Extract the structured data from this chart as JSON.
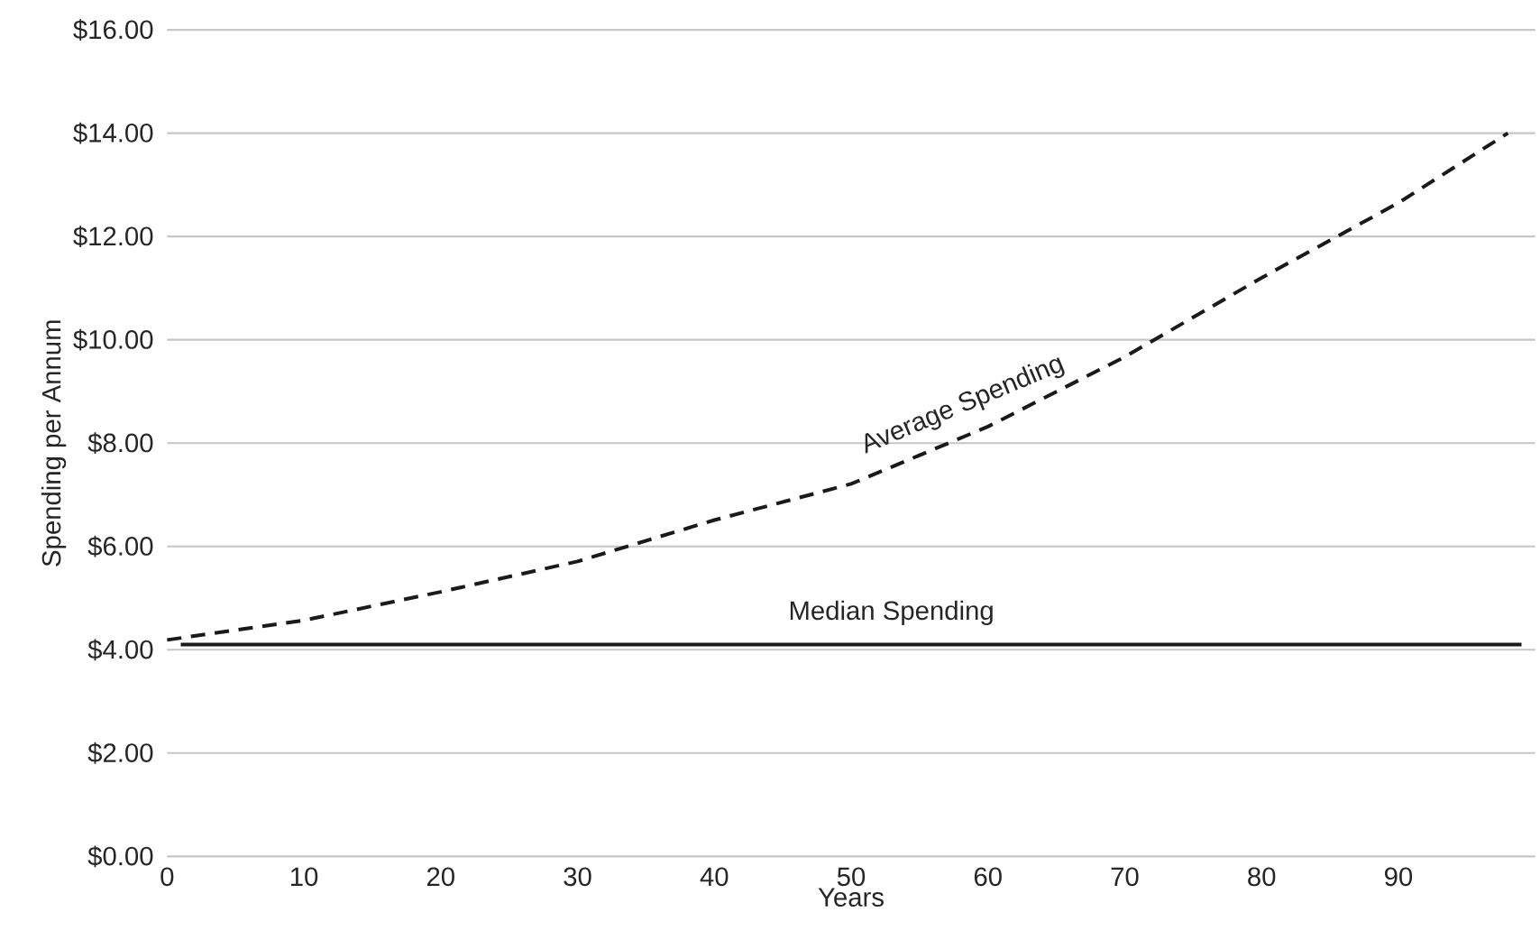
{
  "chart_data": {
    "type": "line",
    "xlabel": "Years",
    "ylabel": "Spending per Annum",
    "xlim": [
      0,
      100
    ],
    "ylim": [
      0,
      16
    ],
    "xticks": [
      0,
      10,
      20,
      30,
      40,
      50,
      60,
      70,
      80,
      90
    ],
    "yticks": [
      {
        "value": 0,
        "label": "$0.00"
      },
      {
        "value": 2,
        "label": "$2.00"
      },
      {
        "value": 4,
        "label": "$4.00"
      },
      {
        "value": 6,
        "label": "$6.00"
      },
      {
        "value": 8,
        "label": "$8.00"
      },
      {
        "value": 10,
        "label": "$10.00"
      },
      {
        "value": 12,
        "label": "$12.00"
      },
      {
        "value": 14,
        "label": "$14.00"
      },
      {
        "value": 16,
        "label": "$16.00"
      }
    ],
    "grid": "y",
    "legend": false,
    "series": [
      {
        "name": "Average Spending",
        "color": "#1a1a1a",
        "line_style": "dashed",
        "x": [
          0,
          10,
          20,
          30,
          40,
          50,
          60,
          70,
          80,
          90,
          98
        ],
        "values": [
          4.19,
          4.57,
          5.12,
          5.71,
          6.51,
          7.21,
          8.32,
          9.67,
          11.2,
          12.65,
          14.0
        ]
      },
      {
        "name": "Median Spending",
        "color": "#1a1a1a",
        "line_style": "solid",
        "x": [
          1,
          99
        ],
        "values": [
          4.1,
          4.1
        ]
      }
    ]
  }
}
